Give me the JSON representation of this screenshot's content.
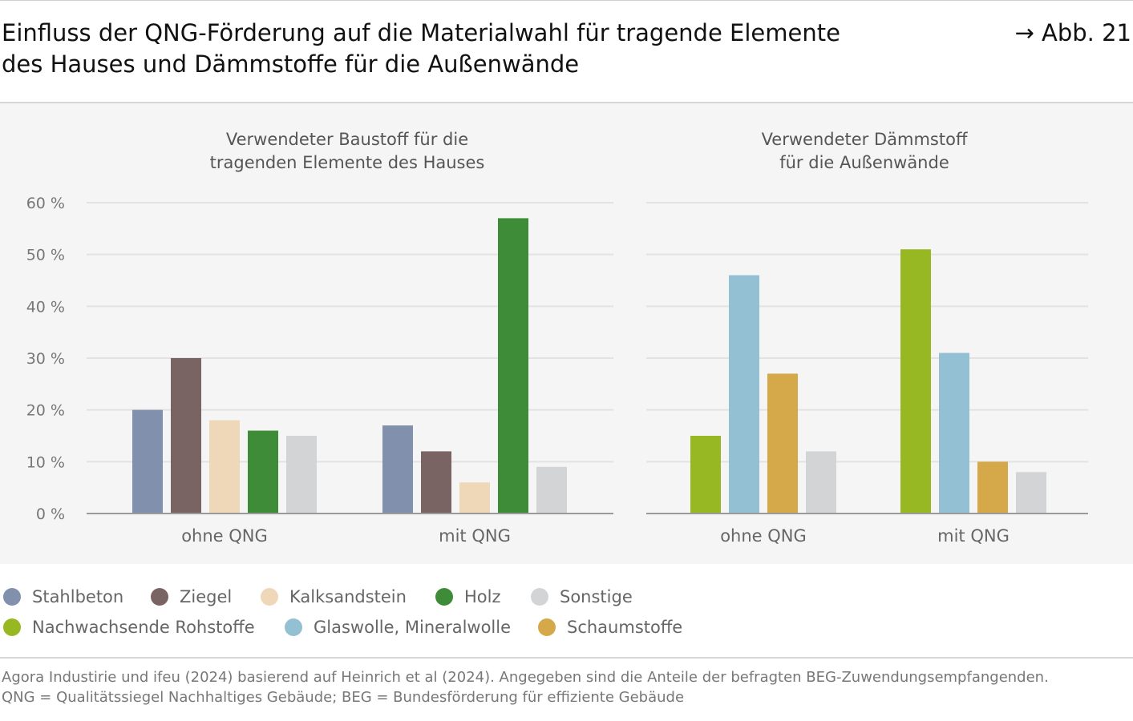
{
  "header": {
    "title_lines": [
      "Einfluss der QNG-Förderung auf die Materialwahl für tragende Elemente",
      "des Hauses und Dämmstoffe für die Außenwände"
    ],
    "figure_ref": "→ Abb. 21"
  },
  "legend": {
    "items": [
      {
        "label": "Stahlbeton",
        "color": "#8190ad"
      },
      {
        "label": "Ziegel",
        "color": "#7a6463"
      },
      {
        "label": "Kalksandstein",
        "color": "#efd8b8"
      },
      {
        "label": "Holz",
        "color": "#3e8c37"
      },
      {
        "label": "Sonstige",
        "color": "#d3d4d6"
      },
      {
        "label": "Nachwachsende Rohstoffe",
        "color": "#98b823"
      },
      {
        "label": "Glaswolle, Mineralwolle",
        "color": "#94c0d3"
      },
      {
        "label": "Schaumstoffe",
        "color": "#d5a84a"
      }
    ]
  },
  "footnote": {
    "lines": [
      "Agora Industirie und ifeu (2024) basierend auf Heinrich et al (2024). Angegeben sind die Anteile der befragten BEG-Zuwendungsempfangenden.",
      "QNG = Qualitätssiegel Nachhaltiges Gebäude; BEG = Bundesförderung für effiziente Gebäude"
    ]
  },
  "chart_data": [
    {
      "type": "bar",
      "title_lines": [
        "Verwendeter Baustoff für die",
        "tragenden Elemente des Hauses"
      ],
      "categories": [
        "ohne QNG",
        "mit QNG"
      ],
      "series": [
        {
          "name": "Stahlbeton",
          "color": "#8190ad",
          "values": [
            20,
            17
          ]
        },
        {
          "name": "Ziegel",
          "color": "#7a6463",
          "values": [
            30,
            12
          ]
        },
        {
          "name": "Kalksandstein",
          "color": "#efd8b8",
          "values": [
            18,
            6
          ]
        },
        {
          "name": "Holz",
          "color": "#3e8c37",
          "values": [
            16,
            57
          ]
        },
        {
          "name": "Sonstige",
          "color": "#d3d4d6",
          "values": [
            15,
            9
          ]
        }
      ],
      "yticks": [
        "0 %",
        "10 %",
        "20 %",
        "30 %",
        "40 %",
        "50 %",
        "60 %"
      ],
      "ylim": [
        0,
        60
      ],
      "grid": true,
      "legend": "bottom"
    },
    {
      "type": "bar",
      "title_lines": [
        "Verwendeter Dämmstoff",
        "für die Außenwände"
      ],
      "categories": [
        "ohne QNG",
        "mit QNG"
      ],
      "series": [
        {
          "name": "Nachwachsende Rohstoffe",
          "color": "#98b823",
          "values": [
            15,
            51
          ]
        },
        {
          "name": "Glaswolle, Mineralwolle",
          "color": "#94c0d3",
          "values": [
            46,
            31
          ]
        },
        {
          "name": "Schaumstoffe",
          "color": "#d5a84a",
          "values": [
            27,
            10
          ]
        },
        {
          "name": "Sonstige",
          "color": "#d3d4d6",
          "values": [
            12,
            8
          ]
        }
      ],
      "ylim": [
        0,
        60
      ],
      "grid": true,
      "legend": "bottom"
    }
  ]
}
